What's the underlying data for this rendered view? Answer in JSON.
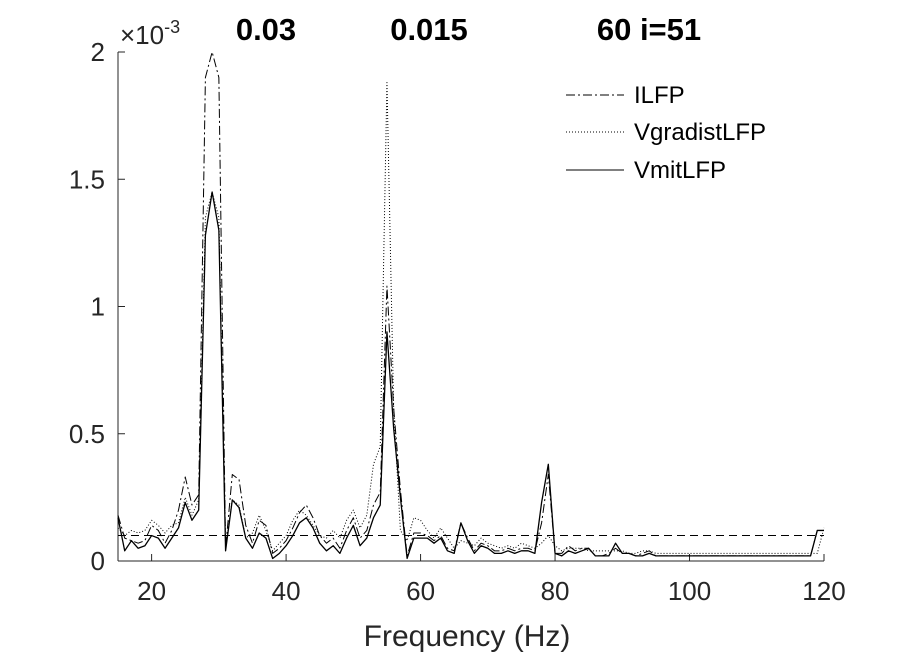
{
  "chart_data": {
    "type": "line",
    "titles": [
      "0.03",
      "0.015",
      "60 i=51"
    ],
    "xlabel": "Frequency (Hz)",
    "ylabel": "",
    "xlim": [
      15,
      120
    ],
    "ylim": [
      0,
      0.002
    ],
    "y_scale_label": "×10",
    "y_scale_exponent": "-3",
    "x_ticks": [
      20,
      40,
      60,
      80,
      100,
      120
    ],
    "x_tick_labels": [
      "20",
      "40",
      "60",
      "80",
      "100",
      "120"
    ],
    "y_ticks": [
      0,
      0.0005,
      0.001,
      0.0015,
      0.002
    ],
    "y_tick_labels": [
      "0",
      "0.5",
      "1",
      "1.5",
      "2"
    ],
    "reference_line": {
      "y": 0.0001,
      "style": "dashed"
    },
    "legend_position": "top-right",
    "x": [
      15,
      16,
      17,
      18,
      19,
      20,
      21,
      22,
      23,
      24,
      25,
      26,
      27,
      28,
      29,
      30,
      31,
      32,
      33,
      34,
      35,
      36,
      37,
      38,
      39,
      40,
      41,
      42,
      43,
      44,
      45,
      46,
      47,
      48,
      49,
      50,
      51,
      52,
      53,
      54,
      55,
      56,
      57,
      58,
      59,
      60,
      61,
      62,
      63,
      64,
      65,
      66,
      67,
      68,
      69,
      70,
      71,
      72,
      73,
      74,
      75,
      76,
      77,
      78,
      79,
      80,
      81,
      82,
      83,
      84,
      85,
      86,
      87,
      88,
      89,
      90,
      91,
      92,
      93,
      94,
      95,
      96,
      97,
      98,
      99,
      100,
      101,
      102,
      103,
      104,
      105,
      106,
      107,
      108,
      109,
      110,
      111,
      112,
      113,
      114,
      115,
      116,
      117,
      118,
      119,
      120
    ],
    "series": [
      {
        "name": "ILFP",
        "style": "dashdot",
        "values": [
          0.00018,
          9e-05,
          8e-05,
          7e-05,
          8e-05,
          0.00014,
          0.00012,
          7e-05,
          0.00012,
          0.0002,
          0.00033,
          0.00022,
          0.00026,
          0.0019,
          0.002,
          0.0019,
          5e-05,
          0.00034,
          0.00032,
          0.00014,
          7e-05,
          0.00016,
          0.00014,
          3e-05,
          5e-05,
          8e-05,
          0.00013,
          0.00019,
          0.00022,
          0.00017,
          0.0001,
          7e-05,
          9e-05,
          5e-05,
          0.00012,
          0.00017,
          9e-05,
          0.00012,
          0.00022,
          0.00027,
          0.00108,
          0.0006,
          0.00028,
          2e-05,
          0.00011,
          0.00011,
          0.0001,
          8e-05,
          0.0001,
          5e-05,
          4e-05,
          0.00015,
          9e-05,
          4e-05,
          7e-05,
          6e-05,
          4e-05,
          4e-05,
          5e-05,
          4e-05,
          5e-05,
          5e-05,
          4e-05,
          0.00015,
          0.00034,
          3e-05,
          3e-05,
          6e-05,
          4e-05,
          5e-05,
          5e-05,
          2e-05,
          2e-05,
          3e-05,
          5e-05,
          3e-05,
          3e-05,
          2e-05,
          3e-05,
          4e-05,
          2e-05,
          2e-05,
          2e-05,
          2e-05,
          2e-05,
          2e-05,
          2e-05,
          2e-05,
          2e-05,
          2e-05,
          2e-05,
          2e-05,
          2e-05,
          2e-05,
          2e-05,
          2e-05,
          2e-05,
          2e-05,
          2e-05,
          2e-05,
          2e-05,
          2e-05,
          2e-05,
          2e-05,
          0.00012,
          0.00012
        ]
      },
      {
        "name": "VgradistLFP",
        "style": "dotted",
        "values": [
          0.00013,
          0.0001,
          0.00012,
          0.00011,
          0.00012,
          0.00016,
          0.00014,
          0.00011,
          0.00014,
          0.00015,
          0.00025,
          0.00018,
          0.00024,
          0.00135,
          0.00145,
          0.00135,
          6e-05,
          0.00024,
          0.00022,
          9e-05,
          0.00011,
          0.00018,
          0.00012,
          4e-05,
          7e-05,
          0.0001,
          0.00016,
          0.0002,
          0.00018,
          0.00014,
          0.0001,
          9e-05,
          0.00012,
          9e-05,
          0.00016,
          0.0002,
          0.00013,
          0.00018,
          0.00038,
          0.00045,
          0.00188,
          0.0006,
          0.00012,
          8e-05,
          0.00017,
          0.00016,
          0.00012,
          9e-05,
          0.00013,
          9e-05,
          5e-05,
          8e-05,
          7e-05,
          6e-05,
          9e-05,
          7e-05,
          6e-05,
          5e-05,
          6e-05,
          5e-05,
          7e-05,
          6e-05,
          5e-05,
          7e-05,
          0.0001,
          6e-05,
          4e-05,
          5e-05,
          5e-05,
          5e-05,
          4e-05,
          4e-05,
          4e-05,
          4e-05,
          4e-05,
          4e-05,
          3e-05,
          3e-05,
          4e-05,
          4e-05,
          3e-05,
          3e-05,
          3e-05,
          3e-05,
          3e-05,
          3e-05,
          3e-05,
          3e-05,
          3e-05,
          3e-05,
          3e-05,
          3e-05,
          3e-05,
          3e-05,
          3e-05,
          3e-05,
          3e-05,
          3e-05,
          3e-05,
          3e-05,
          3e-05,
          3e-05,
          3e-05,
          3e-05,
          3e-05,
          0.00013
        ]
      },
      {
        "name": "VmitLFP",
        "style": "solid",
        "values": [
          0.00017,
          4e-05,
          8e-05,
          5e-05,
          6e-05,
          0.0001,
          9e-05,
          5e-05,
          9e-05,
          0.00013,
          0.00023,
          0.00016,
          0.0002,
          0.00128,
          0.00145,
          0.0013,
          4e-05,
          0.00024,
          0.00021,
          9e-05,
          5e-05,
          0.00011,
          9e-05,
          1e-05,
          3e-05,
          6e-05,
          0.0001,
          0.00015,
          0.00017,
          0.00013,
          7e-05,
          4e-05,
          6e-05,
          3e-05,
          9e-05,
          0.00014,
          6e-05,
          9e-05,
          0.00017,
          0.00022,
          0.0009,
          0.00052,
          0.00025,
          1e-05,
          9e-05,
          9e-05,
          9e-05,
          7e-05,
          9e-05,
          4e-05,
          3e-05,
          0.00015,
          8e-05,
          3e-05,
          6e-05,
          5e-05,
          3e-05,
          3e-05,
          4e-05,
          3e-05,
          4e-05,
          4e-05,
          3e-05,
          0.00023,
          0.00038,
          3e-05,
          2e-05,
          4e-05,
          3e-05,
          4e-05,
          5e-05,
          2e-05,
          2e-05,
          2e-05,
          7e-05,
          3e-05,
          3e-05,
          2e-05,
          2e-05,
          3e-05,
          2e-05,
          2e-05,
          2e-05,
          2e-05,
          2e-05,
          2e-05,
          2e-05,
          2e-05,
          2e-05,
          2e-05,
          2e-05,
          2e-05,
          2e-05,
          2e-05,
          2e-05,
          2e-05,
          2e-05,
          2e-05,
          2e-05,
          2e-05,
          2e-05,
          2e-05,
          2e-05,
          2e-05,
          0.00012,
          0.00012
        ]
      }
    ]
  }
}
